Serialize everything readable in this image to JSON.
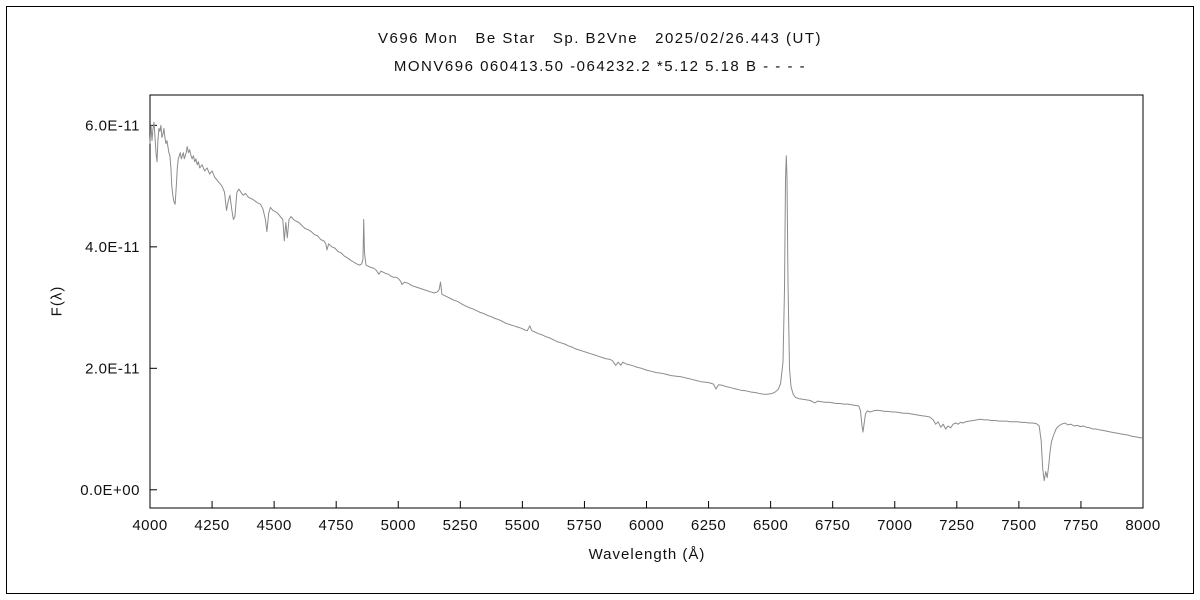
{
  "chart_data": {
    "type": "line",
    "title": "V696 Mon   Be Star   Sp. B2Vne   2025/02/26.443 (UT)",
    "subtitle": "MONV696 060413.50 -064232.2 *5.12 5.18 B - - - -",
    "xlabel": "Wavelength (Å)",
    "ylabel": "F(λ)",
    "xlim": [
      4000,
      8000
    ],
    "ylim": [
      -0.3,
      6.5
    ],
    "y_scale": 1e-11,
    "x_ticks": [
      4000,
      4250,
      4500,
      4750,
      5000,
      5250,
      5500,
      5750,
      6000,
      6250,
      6500,
      6750,
      7000,
      7250,
      7500,
      7750,
      8000
    ],
    "y_ticks": [
      {
        "value": 0,
        "label": "0.0E+00"
      },
      {
        "value": 2,
        "label": "2.0E-11"
      },
      {
        "value": 4,
        "label": "4.0E-11"
      },
      {
        "value": 6,
        "label": "6.0E-11"
      }
    ],
    "grid": false,
    "legend": false,
    "line_color": "#8c8c8c",
    "axis_color": "#000000",
    "background": "#ffffff",
    "series_name": "flux-spectrum",
    "points": [
      [
        4000,
        5.7
      ],
      [
        4004,
        6.0
      ],
      [
        4008,
        5.75
      ],
      [
        4012,
        5.95
      ],
      [
        4016,
        6.05
      ],
      [
        4020,
        5.8
      ],
      [
        4024,
        5.55
      ],
      [
        4028,
        5.4
      ],
      [
        4032,
        5.75
      ],
      [
        4036,
        5.95
      ],
      [
        4040,
        5.9
      ],
      [
        4044,
        6.0
      ],
      [
        4048,
        5.8
      ],
      [
        4052,
        5.85
      ],
      [
        4056,
        5.95
      ],
      [
        4060,
        5.8
      ],
      [
        4064,
        5.7
      ],
      [
        4068,
        5.75
      ],
      [
        4072,
        5.65
      ],
      [
        4076,
        5.55
      ],
      [
        4080,
        5.5
      ],
      [
        4084,
        5.3
      ],
      [
        4088,
        5.0
      ],
      [
        4092,
        4.85
      ],
      [
        4096,
        4.75
      ],
      [
        4101,
        4.7
      ],
      [
        4106,
        5.0
      ],
      [
        4110,
        5.3
      ],
      [
        4114,
        5.45
      ],
      [
        4118,
        5.5
      ],
      [
        4122,
        5.55
      ],
      [
        4126,
        5.45
      ],
      [
        4130,
        5.5
      ],
      [
        4134,
        5.55
      ],
      [
        4138,
        5.45
      ],
      [
        4142,
        5.5
      ],
      [
        4146,
        5.55
      ],
      [
        4150,
        5.65
      ],
      [
        4155,
        5.55
      ],
      [
        4160,
        5.6
      ],
      [
        4165,
        5.5
      ],
      [
        4170,
        5.45
      ],
      [
        4175,
        5.5
      ],
      [
        4180,
        5.4
      ],
      [
        4185,
        5.45
      ],
      [
        4190,
        5.35
      ],
      [
        4195,
        5.4
      ],
      [
        4200,
        5.3
      ],
      [
        4210,
        5.35
      ],
      [
        4220,
        5.25
      ],
      [
        4230,
        5.3
      ],
      [
        4240,
        5.2
      ],
      [
        4250,
        5.25
      ],
      [
        4260,
        5.15
      ],
      [
        4270,
        5.1
      ],
      [
        4280,
        5.05
      ],
      [
        4290,
        5.0
      ],
      [
        4300,
        4.9
      ],
      [
        4308,
        4.6
      ],
      [
        4315,
        4.75
      ],
      [
        4322,
        4.85
      ],
      [
        4330,
        4.6
      ],
      [
        4336,
        4.45
      ],
      [
        4342,
        4.5
      ],
      [
        4350,
        4.9
      ],
      [
        4358,
        4.95
      ],
      [
        4366,
        4.9
      ],
      [
        4375,
        4.85
      ],
      [
        4385,
        4.88
      ],
      [
        4395,
        4.82
      ],
      [
        4405,
        4.8
      ],
      [
        4415,
        4.78
      ],
      [
        4425,
        4.75
      ],
      [
        4435,
        4.72
      ],
      [
        4445,
        4.7
      ],
      [
        4455,
        4.62
      ],
      [
        4465,
        4.45
      ],
      [
        4471,
        4.25
      ],
      [
        4478,
        4.55
      ],
      [
        4485,
        4.65
      ],
      [
        4495,
        4.6
      ],
      [
        4505,
        4.58
      ],
      [
        4515,
        4.55
      ],
      [
        4525,
        4.5
      ],
      [
        4535,
        4.45
      ],
      [
        4541,
        4.1
      ],
      [
        4547,
        4.4
      ],
      [
        4553,
        4.15
      ],
      [
        4560,
        4.45
      ],
      [
        4568,
        4.5
      ],
      [
        4578,
        4.45
      ],
      [
        4590,
        4.42
      ],
      [
        4600,
        4.4
      ],
      [
        4612,
        4.35
      ],
      [
        4625,
        4.3
      ],
      [
        4638,
        4.28
      ],
      [
        4650,
        4.25
      ],
      [
        4663,
        4.2
      ],
      [
        4675,
        4.18
      ],
      [
        4688,
        4.12
      ],
      [
        4700,
        4.1
      ],
      [
        4708,
        4.05
      ],
      [
        4713,
        3.95
      ],
      [
        4720,
        4.05
      ],
      [
        4732,
        4.0
      ],
      [
        4745,
        3.98
      ],
      [
        4758,
        3.92
      ],
      [
        4770,
        3.9
      ],
      [
        4782,
        3.85
      ],
      [
        4795,
        3.82
      ],
      [
        4808,
        3.78
      ],
      [
        4820,
        3.75
      ],
      [
        4832,
        3.72
      ],
      [
        4845,
        3.7
      ],
      [
        4853,
        3.72
      ],
      [
        4858,
        3.8
      ],
      [
        4861,
        4.45
      ],
      [
        4864,
        3.9
      ],
      [
        4870,
        3.7
      ],
      [
        4880,
        3.68
      ],
      [
        4890,
        3.66
      ],
      [
        4900,
        3.65
      ],
      [
        4910,
        3.62
      ],
      [
        4922,
        3.55
      ],
      [
        4930,
        3.6
      ],
      [
        4940,
        3.58
      ],
      [
        4950,
        3.56
      ],
      [
        4960,
        3.55
      ],
      [
        4970,
        3.52
      ],
      [
        4980,
        3.5
      ],
      [
        4990,
        3.5
      ],
      [
        5000,
        3.48
      ],
      [
        5012,
        3.42
      ],
      [
        5015,
        3.38
      ],
      [
        5025,
        3.42
      ],
      [
        5040,
        3.4
      ],
      [
        5055,
        3.36
      ],
      [
        5070,
        3.34
      ],
      [
        5085,
        3.32
      ],
      [
        5100,
        3.3
      ],
      [
        5115,
        3.28
      ],
      [
        5130,
        3.26
      ],
      [
        5145,
        3.24
      ],
      [
        5158,
        3.26
      ],
      [
        5165,
        3.3
      ],
      [
        5170,
        3.42
      ],
      [
        5176,
        3.22
      ],
      [
        5185,
        3.2
      ],
      [
        5195,
        3.18
      ],
      [
        5210,
        3.15
      ],
      [
        5225,
        3.12
      ],
      [
        5240,
        3.1
      ],
      [
        5255,
        3.06
      ],
      [
        5270,
        3.03
      ],
      [
        5285,
        3.0
      ],
      [
        5300,
        2.98
      ],
      [
        5315,
        2.95
      ],
      [
        5330,
        2.92
      ],
      [
        5345,
        2.9
      ],
      [
        5360,
        2.87
      ],
      [
        5375,
        2.85
      ],
      [
        5390,
        2.82
      ],
      [
        5405,
        2.8
      ],
      [
        5420,
        2.77
      ],
      [
        5435,
        2.74
      ],
      [
        5450,
        2.72
      ],
      [
        5465,
        2.7
      ],
      [
        5480,
        2.68
      ],
      [
        5495,
        2.66
      ],
      [
        5510,
        2.63
      ],
      [
        5520,
        2.62
      ],
      [
        5530,
        2.7
      ],
      [
        5538,
        2.62
      ],
      [
        5550,
        2.6
      ],
      [
        5565,
        2.57
      ],
      [
        5580,
        2.55
      ],
      [
        5595,
        2.52
      ],
      [
        5610,
        2.5
      ],
      [
        5625,
        2.47
      ],
      [
        5640,
        2.44
      ],
      [
        5655,
        2.42
      ],
      [
        5670,
        2.4
      ],
      [
        5685,
        2.37
      ],
      [
        5700,
        2.35
      ],
      [
        5715,
        2.32
      ],
      [
        5730,
        2.3
      ],
      [
        5745,
        2.28
      ],
      [
        5760,
        2.26
      ],
      [
        5775,
        2.24
      ],
      [
        5790,
        2.22
      ],
      [
        5805,
        2.2
      ],
      [
        5820,
        2.18
      ],
      [
        5835,
        2.16
      ],
      [
        5850,
        2.15
      ],
      [
        5862,
        2.13
      ],
      [
        5876,
        2.05
      ],
      [
        5886,
        2.1
      ],
      [
        5896,
        2.05
      ],
      [
        5905,
        2.1
      ],
      [
        5920,
        2.07
      ],
      [
        5940,
        2.05
      ],
      [
        5960,
        2.02
      ],
      [
        5980,
        2.0
      ],
      [
        6000,
        1.97
      ],
      [
        6020,
        1.95
      ],
      [
        6040,
        1.93
      ],
      [
        6060,
        1.92
      ],
      [
        6080,
        1.9
      ],
      [
        6100,
        1.88
      ],
      [
        6120,
        1.87
      ],
      [
        6140,
        1.86
      ],
      [
        6160,
        1.84
      ],
      [
        6180,
        1.82
      ],
      [
        6200,
        1.8
      ],
      [
        6220,
        1.78
      ],
      [
        6240,
        1.77
      ],
      [
        6255,
        1.76
      ],
      [
        6270,
        1.74
      ],
      [
        6280,
        1.66
      ],
      [
        6290,
        1.73
      ],
      [
        6305,
        1.72
      ],
      [
        6320,
        1.7
      ],
      [
        6340,
        1.68
      ],
      [
        6360,
        1.66
      ],
      [
        6380,
        1.64
      ],
      [
        6400,
        1.63
      ],
      [
        6420,
        1.61
      ],
      [
        6440,
        1.6
      ],
      [
        6460,
        1.58
      ],
      [
        6480,
        1.57
      ],
      [
        6500,
        1.58
      ],
      [
        6515,
        1.6
      ],
      [
        6530,
        1.65
      ],
      [
        6540,
        1.75
      ],
      [
        6550,
        2.1
      ],
      [
        6556,
        3.3
      ],
      [
        6560,
        5.1
      ],
      [
        6563,
        5.5
      ],
      [
        6566,
        5.15
      ],
      [
        6570,
        3.4
      ],
      [
        6576,
        2.0
      ],
      [
        6582,
        1.7
      ],
      [
        6590,
        1.58
      ],
      [
        6600,
        1.52
      ],
      [
        6615,
        1.5
      ],
      [
        6630,
        1.49
      ],
      [
        6645,
        1.48
      ],
      [
        6660,
        1.47
      ],
      [
        6678,
        1.43
      ],
      [
        6690,
        1.46
      ],
      [
        6705,
        1.45
      ],
      [
        6720,
        1.44
      ],
      [
        6735,
        1.44
      ],
      [
        6750,
        1.43
      ],
      [
        6765,
        1.42
      ],
      [
        6780,
        1.42
      ],
      [
        6795,
        1.41
      ],
      [
        6810,
        1.41
      ],
      [
        6825,
        1.4
      ],
      [
        6840,
        1.39
      ],
      [
        6855,
        1.38
      ],
      [
        6862,
        1.3
      ],
      [
        6868,
        1.05
      ],
      [
        6872,
        0.95
      ],
      [
        6877,
        1.1
      ],
      [
        6882,
        1.25
      ],
      [
        6890,
        1.3
      ],
      [
        6900,
        1.28
      ],
      [
        6915,
        1.3
      ],
      [
        6930,
        1.31
      ],
      [
        6945,
        1.3
      ],
      [
        6960,
        1.29
      ],
      [
        6975,
        1.29
      ],
      [
        6990,
        1.28
      ],
      [
        7005,
        1.28
      ],
      [
        7020,
        1.27
      ],
      [
        7035,
        1.26
      ],
      [
        7050,
        1.26
      ],
      [
        7065,
        1.25
      ],
      [
        7080,
        1.24
      ],
      [
        7095,
        1.23
      ],
      [
        7110,
        1.22
      ],
      [
        7125,
        1.21
      ],
      [
        7140,
        1.2
      ],
      [
        7155,
        1.15
      ],
      [
        7165,
        1.08
      ],
      [
        7175,
        1.12
      ],
      [
        7185,
        1.03
      ],
      [
        7195,
        1.08
      ],
      [
        7205,
        1.0
      ],
      [
        7215,
        1.05
      ],
      [
        7225,
        1.02
      ],
      [
        7235,
        1.08
      ],
      [
        7245,
        1.1
      ],
      [
        7255,
        1.08
      ],
      [
        7265,
        1.11
      ],
      [
        7275,
        1.1
      ],
      [
        7285,
        1.12
      ],
      [
        7300,
        1.13
      ],
      [
        7315,
        1.14
      ],
      [
        7330,
        1.15
      ],
      [
        7345,
        1.16
      ],
      [
        7360,
        1.15
      ],
      [
        7375,
        1.15
      ],
      [
        7390,
        1.14
      ],
      [
        7405,
        1.14
      ],
      [
        7420,
        1.13
      ],
      [
        7435,
        1.13
      ],
      [
        7450,
        1.13
      ],
      [
        7465,
        1.12
      ],
      [
        7480,
        1.12
      ],
      [
        7495,
        1.12
      ],
      [
        7510,
        1.11
      ],
      [
        7525,
        1.11
      ],
      [
        7540,
        1.1
      ],
      [
        7555,
        1.1
      ],
      [
        7570,
        1.09
      ],
      [
        7582,
        1.05
      ],
      [
        7590,
        0.8
      ],
      [
        7596,
        0.35
      ],
      [
        7602,
        0.15
      ],
      [
        7608,
        0.3
      ],
      [
        7614,
        0.2
      ],
      [
        7620,
        0.4
      ],
      [
        7626,
        0.65
      ],
      [
        7632,
        0.8
      ],
      [
        7640,
        0.9
      ],
      [
        7650,
        1.0
      ],
      [
        7660,
        1.05
      ],
      [
        7672,
        1.08
      ],
      [
        7685,
        1.1
      ],
      [
        7698,
        1.07
      ],
      [
        7710,
        1.08
      ],
      [
        7722,
        1.05
      ],
      [
        7735,
        1.06
      ],
      [
        7748,
        1.04
      ],
      [
        7760,
        1.05
      ],
      [
        7772,
        1.03
      ],
      [
        7785,
        1.02
      ],
      [
        7798,
        1.0
      ],
      [
        7810,
        1.0
      ],
      [
        7822,
        0.99
      ],
      [
        7835,
        0.98
      ],
      [
        7848,
        0.97
      ],
      [
        7860,
        0.96
      ],
      [
        7872,
        0.95
      ],
      [
        7885,
        0.94
      ],
      [
        7898,
        0.93
      ],
      [
        7910,
        0.92
      ],
      [
        7925,
        0.91
      ],
      [
        7940,
        0.9
      ],
      [
        7955,
        0.88
      ],
      [
        7970,
        0.87
      ],
      [
        7985,
        0.86
      ],
      [
        8000,
        0.85
      ]
    ]
  }
}
